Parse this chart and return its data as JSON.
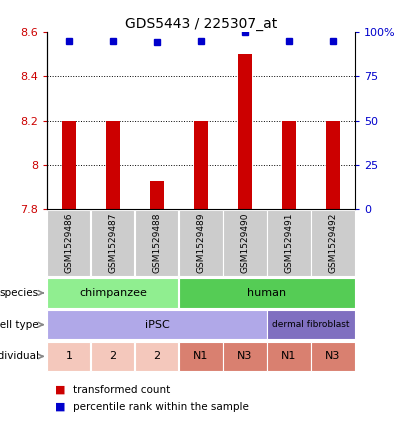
{
  "title": "GDS5443 / 225307_at",
  "samples": [
    "GSM1529486",
    "GSM1529487",
    "GSM1529488",
    "GSM1529489",
    "GSM1529490",
    "GSM1529491",
    "GSM1529492"
  ],
  "red_values": [
    8.2,
    8.2,
    7.93,
    8.2,
    8.5,
    8.2,
    8.2
  ],
  "blue_values": [
    95,
    95,
    94,
    95,
    100,
    95,
    95
  ],
  "ylim_left": [
    7.8,
    8.6
  ],
  "ylim_right": [
    0,
    100
  ],
  "yticks_left": [
    7.8,
    8.0,
    8.2,
    8.4,
    8.6
  ],
  "ytick_labels_left": [
    "7.8",
    "8",
    "8.2",
    "8.4",
    "8.6"
  ],
  "yticks_right": [
    0,
    25,
    50,
    75,
    100
  ],
  "ytick_labels_right": [
    "0",
    "25",
    "50",
    "75",
    "100%"
  ],
  "species": [
    {
      "label": "chimpanzee",
      "start": 0,
      "end": 3,
      "color": "#90ee90"
    },
    {
      "label": "human",
      "start": 3,
      "end": 7,
      "color": "#55cc55"
    }
  ],
  "cell_type": [
    {
      "label": "iPSC",
      "start": 0,
      "end": 5,
      "color": "#b0a8e8"
    },
    {
      "label": "dermal fibroblast",
      "start": 5,
      "end": 7,
      "color": "#8070c0"
    }
  ],
  "individual": [
    {
      "label": "1",
      "start": 0,
      "end": 1,
      "color": "#f4c8bc"
    },
    {
      "label": "2",
      "start": 1,
      "end": 2,
      "color": "#f4c8bc"
    },
    {
      "label": "2",
      "start": 2,
      "end": 3,
      "color": "#f4c8bc"
    },
    {
      "label": "N1",
      "start": 3,
      "end": 4,
      "color": "#d98070"
    },
    {
      "label": "N3",
      "start": 4,
      "end": 5,
      "color": "#d98070"
    },
    {
      "label": "N1",
      "start": 5,
      "end": 6,
      "color": "#d98070"
    },
    {
      "label": "N3",
      "start": 6,
      "end": 7,
      "color": "#d98070"
    }
  ],
  "bar_color": "#cc0000",
  "dot_color": "#0000cc",
  "ybase": 7.8,
  "sample_bg_color": "#cccccc",
  "bar_width": 0.3
}
